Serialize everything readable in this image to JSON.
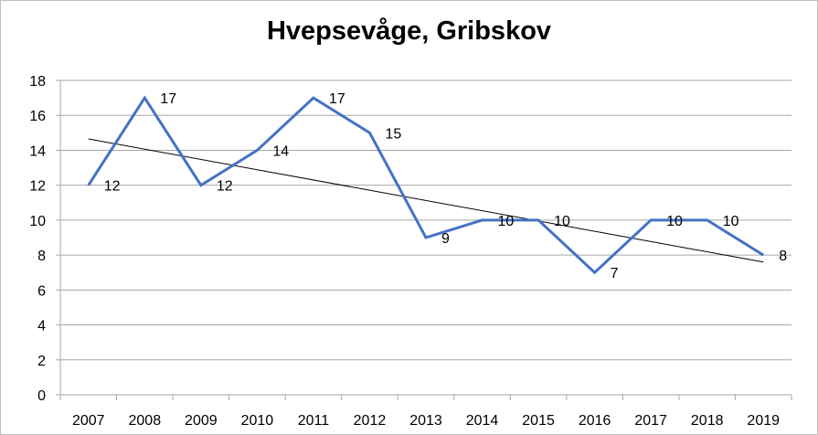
{
  "chart_data": {
    "type": "line",
    "title": "Hvepsevåge, Gribskov",
    "x": [
      "2007",
      "2008",
      "2009",
      "2010",
      "2011",
      "2012",
      "2013",
      "2014",
      "2015",
      "2016",
      "2017",
      "2018",
      "2019"
    ],
    "series": [
      {
        "values": [
          12,
          17,
          12,
          14,
          17,
          15,
          9,
          10,
          10,
          7,
          10,
          10,
          8
        ],
        "color": "#4472c4"
      }
    ],
    "trendline": {
      "type": "linear",
      "start": 14.65,
      "end": 7.6,
      "color": "#000000"
    },
    "ylim": [
      0,
      18
    ],
    "yticks": [
      0,
      2,
      4,
      6,
      8,
      10,
      12,
      14,
      16,
      18
    ],
    "grid": true,
    "legend": "none",
    "xlabel": "",
    "ylabel": ""
  }
}
